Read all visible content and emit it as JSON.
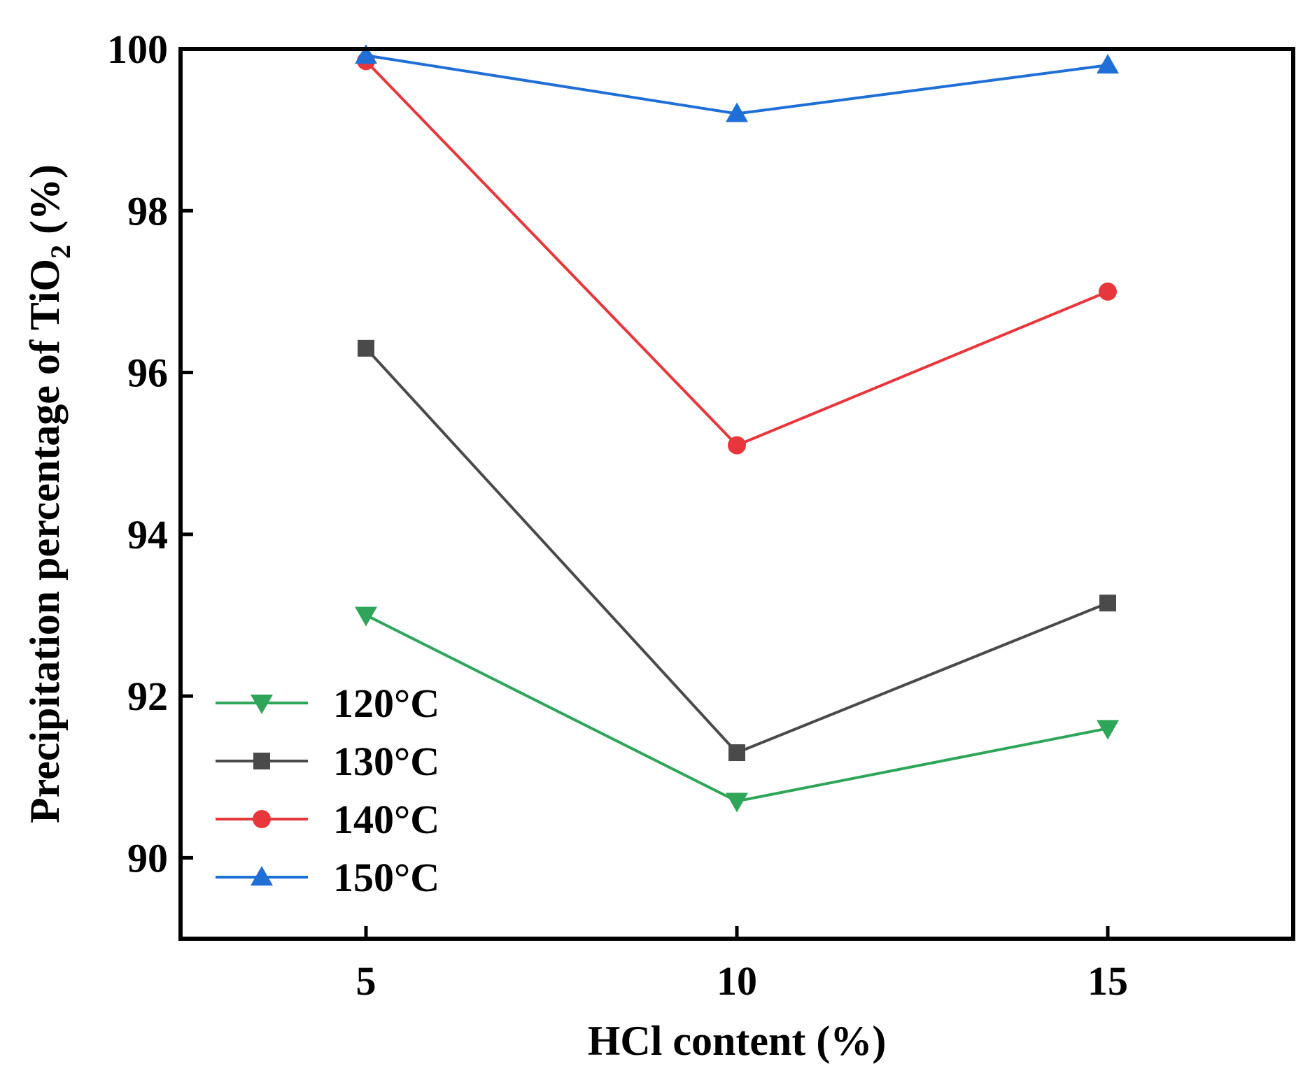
{
  "chart_data": {
    "type": "line",
    "title": "",
    "xlabel": "HCl content (%)",
    "ylabel_main": "Precipitation percentage of TiO",
    "ylabel_subscript": "2",
    "ylabel_suffix": " (%)",
    "x": [
      5,
      10,
      15
    ],
    "xlim": [
      2.5,
      17.5
    ],
    "ylim": [
      89,
      100
    ],
    "xticks": [
      5,
      10,
      15
    ],
    "xtick_labels": [
      "5",
      "10",
      "15"
    ],
    "yticks": [
      90,
      92,
      94,
      96,
      98,
      100
    ],
    "ytick_labels": [
      "90",
      "92",
      "94",
      "96",
      "98",
      "100"
    ],
    "grid": false,
    "legend_position": "bottom-left",
    "series": [
      {
        "name": "120°C",
        "color": "#2fa55a",
        "marker": "triangle-down",
        "values": [
          93.0,
          90.7,
          91.6
        ]
      },
      {
        "name": "130°C",
        "color": "#4a4a4a",
        "marker": "square",
        "values": [
          96.3,
          91.3,
          93.15
        ]
      },
      {
        "name": "140°C",
        "color": "#e8373c",
        "marker": "circle",
        "values": [
          99.85,
          95.1,
          97.0
        ]
      },
      {
        "name": "150°C",
        "color": "#1f6fd6",
        "marker": "triangle-up",
        "values": [
          99.92,
          99.2,
          99.8
        ]
      }
    ]
  }
}
